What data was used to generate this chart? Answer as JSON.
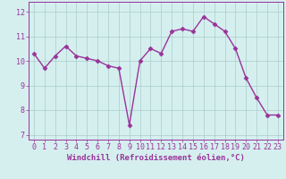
{
  "x": [
    0,
    1,
    2,
    3,
    4,
    5,
    6,
    7,
    8,
    9,
    10,
    11,
    12,
    13,
    14,
    15,
    16,
    17,
    18,
    19,
    20,
    21,
    22,
    23
  ],
  "y": [
    10.3,
    9.7,
    10.2,
    10.6,
    10.2,
    10.1,
    10.0,
    9.8,
    9.7,
    7.4,
    10.0,
    10.5,
    10.3,
    11.2,
    11.3,
    11.2,
    11.8,
    11.5,
    11.2,
    10.5,
    9.3,
    8.5,
    7.8,
    7.8
  ],
  "line_color": "#993399",
  "marker": "D",
  "marker_size": 2.5,
  "linewidth": 1.0,
  "xlabel": "Windchill (Refroidissement éolien,°C)",
  "xlabel_fontsize": 6.5,
  "background_color": "#d5efef",
  "grid_color": "#aacccc",
  "yticks": [
    7,
    8,
    9,
    10,
    11,
    12
  ],
  "xticks": [
    0,
    1,
    2,
    3,
    4,
    5,
    6,
    7,
    8,
    9,
    10,
    11,
    12,
    13,
    14,
    15,
    16,
    17,
    18,
    19,
    20,
    21,
    22,
    23
  ],
  "ylim": [
    6.8,
    12.4
  ],
  "xlim": [
    -0.5,
    23.5
  ],
  "tick_fontsize": 6.0,
  "tick_color": "#993399",
  "label_color": "#993399",
  "spine_color": "#993399"
}
